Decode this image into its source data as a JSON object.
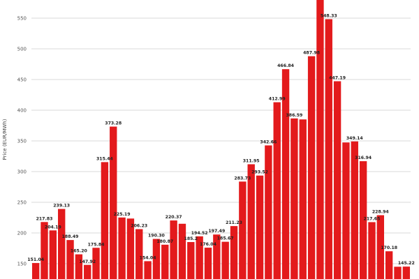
{
  "chart_data": {
    "type": "bar",
    "ylabel": "Price (EUR/MWh)",
    "ylim": [
      125,
      575
    ],
    "yticks": [
      150,
      200,
      250,
      300,
      350,
      400,
      450,
      500,
      550
    ],
    "grid": true,
    "bar_color": "#e31a1c",
    "highlight_color": "#1f3f99",
    "highlight_range": [
      47,
      48
    ],
    "values": [
      151.04,
      217.83,
      204.19,
      239.13,
      188.49,
      165.2,
      147.92,
      175.84,
      315.44,
      373.28,
      225.19,
      223.5,
      206.23,
      154.04,
      190.3,
      180.87,
      220.37,
      215.0,
      185.2,
      194.52,
      176.04,
      197.49,
      185.67,
      211.23,
      283.73,
      311.95,
      293.52,
      342.66,
      412.99,
      466.84,
      386.59,
      385.0,
      487.98,
      580.0,
      548.33,
      447.19,
      347.5,
      349.14,
      316.94,
      217.65,
      228.94,
      170.18,
      145.0,
      145.22
    ],
    "labels": [
      "151.04",
      "217.83",
      "204.19",
      "239.13",
      "188.49",
      "165.20",
      "147.92",
      "175.84",
      "315.44",
      "373.28",
      "225.19",
      "",
      "206.23",
      "154.04",
      "190.30",
      "180.87",
      "220.37",
      "",
      "185.2",
      "194.52",
      "176.04",
      "197.49",
      "185.67",
      "211.23",
      "283.73",
      "311.95",
      "293.52",
      "342.66",
      "412.99",
      "466.84",
      "386.59",
      "",
      "487.98",
      "",
      "548.33",
      "447.19",
      "",
      "349.14",
      "316.94",
      "217.65",
      "228.94",
      "170.18",
      "",
      "145.22"
    ]
  }
}
